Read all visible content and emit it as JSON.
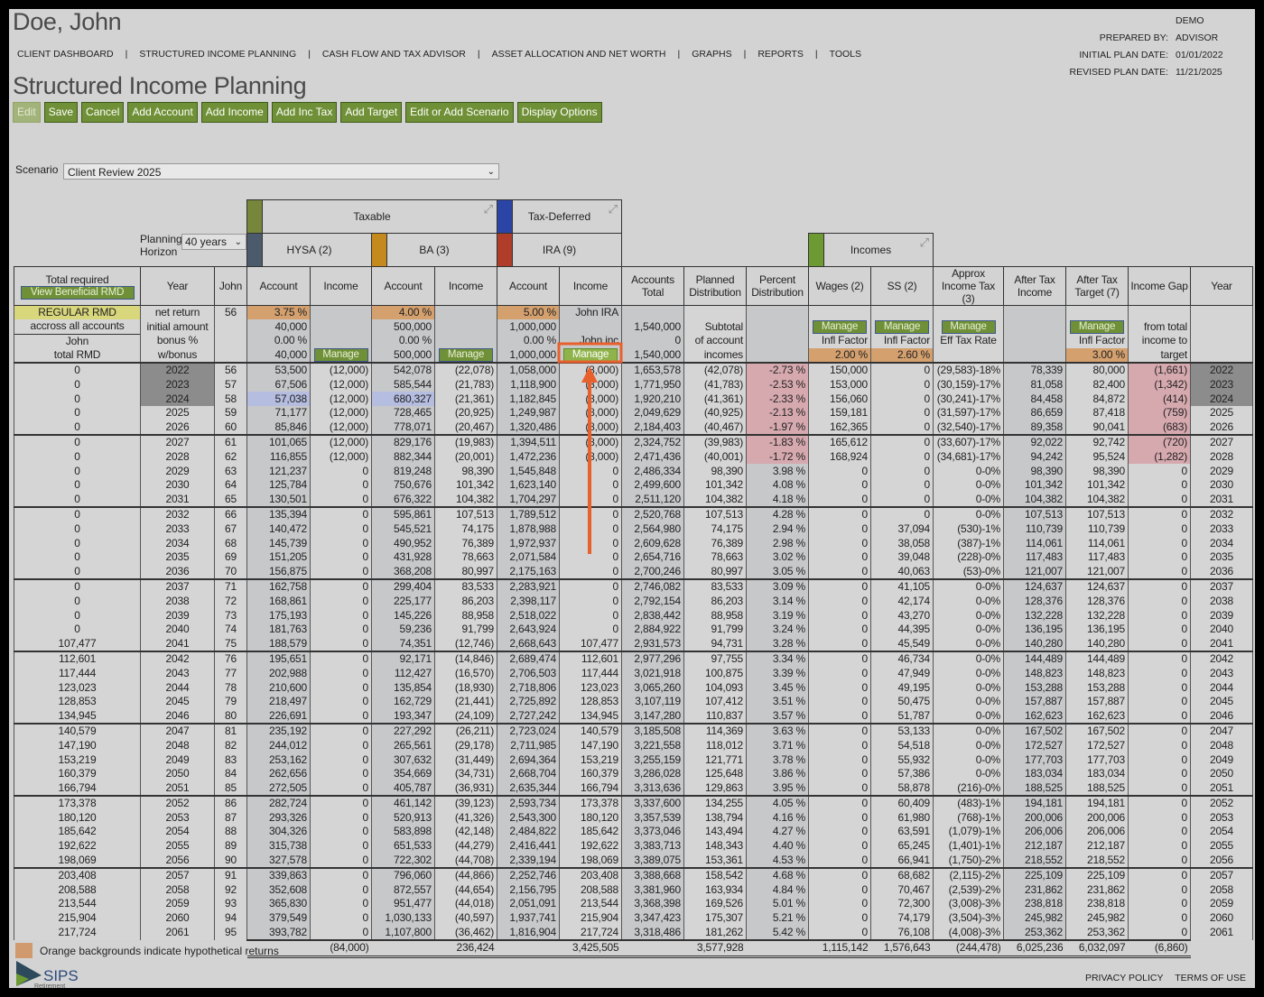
{
  "client_name": "Doe, John",
  "nav": [
    "CLIENT DASHBOARD",
    "STRUCTURED INCOME PLANNING",
    "CASH FLOW AND TAX ADVISOR",
    "ASSET ALLOCATION AND NET WORTH",
    "GRAPHS",
    "REPORTS",
    "TOOLS"
  ],
  "meta": {
    "prepared_by_label": "PREPARED BY:",
    "prepared_by": "DEMO ADVISOR",
    "initial_label": "INITIAL PLAN DATE:",
    "initial_date": "01/01/2022",
    "revised_label": "REVISED PLAN DATE:",
    "revised_date": "11/21/2025"
  },
  "page_title": "Structured Income Planning",
  "toolbar": [
    "Edit",
    "Save",
    "Cancel",
    "Add Account",
    "Add Income",
    "Add Inc Tax",
    "Add Target",
    "Edit or Add Scenario",
    "Display Options"
  ],
  "scenario": {
    "label": "Scenario",
    "value": "Client Review 2025"
  },
  "planning_horizon": {
    "label1": "Planning",
    "label2": "Horizon",
    "value": "40 years"
  },
  "groups": {
    "taxable": "Taxable",
    "tax_deferred": "Tax-Deferred",
    "hysa": "HYSA (2)",
    "ba": "BA (3)",
    "ira": "IRA (9)",
    "incomes": "Incomes"
  },
  "colors": {
    "taxable": "#76863a",
    "tax_deferred": "#2a45a5",
    "hysa": "#4b5b6b",
    "ba": "#c48a1e",
    "ira": "#b03c2a",
    "incomes": "#6d9a32",
    "button": "#6f9036",
    "hypothetical": "#d4a06e"
  },
  "headers": {
    "total_required": "Total required",
    "view_rmd": "View Beneficial RMD",
    "year": "Year",
    "john": "John",
    "account": "Account",
    "income": "Income",
    "accounts_total": "Accounts Total",
    "planned": "Planned Distribution",
    "percent": "Percent Distribution",
    "wages": "Wages (2)",
    "ss": "SS (2)",
    "tax": "Approx Income Tax (3)",
    "ati": "After Tax Income",
    "target": "After Tax Target (7)",
    "gap": "Income Gap",
    "year2": "Year"
  },
  "sub": {
    "regular_rmd": "REGULAR RMD",
    "across": "accross all accounts",
    "john": "John",
    "total_rmd": "total RMD",
    "net_return": "net return",
    "initial_amount": "initial amount",
    "bonus": "bonus %",
    "wbonus": "w/bonus",
    "age": "56",
    "manage": "Manage",
    "hysa": {
      "rate": "3.75 %",
      "initial": "40,000",
      "bonus": "0.00 %",
      "wbonus": "40,000"
    },
    "ba": {
      "rate": "4.00 %",
      "initial": "500,000",
      "bonus": "0.00 %",
      "wbonus": "500,000"
    },
    "ira": {
      "rate": "5.00 %",
      "initial": "1,000,000",
      "bonus": "0.00 %",
      "wbonus": "1,000,000",
      "inc1": "John IRA",
      "inc3": "John inc"
    },
    "total": {
      "r2": "1,540,000",
      "r3": "0",
      "r4": "1,540,000"
    },
    "planned": {
      "r2": "Subtotal",
      "r3": "of account",
      "r4": "incomes"
    },
    "infl": "Infl Factor",
    "eff": "Eff Tax Rate",
    "wages_infl": "2.00 %",
    "ss_infl": "2.60 %",
    "target_infl": "3.00 %",
    "gap": {
      "r2": "from total",
      "r3": "income to",
      "r4": "target"
    }
  },
  "rows": [
    [
      "0",
      "2022",
      "56",
      "53,500",
      "(12,000)",
      "542,078",
      "(22,078)",
      "1,058,000",
      "(8,000)",
      "1,653,578",
      "(42,078)",
      "-2.73 %",
      "150,000",
      "0",
      "(29,583)-18%",
      "78,339",
      "80,000",
      "(1,661)"
    ],
    [
      "0",
      "2023",
      "57",
      "67,506",
      "(12,000)",
      "585,544",
      "(21,783)",
      "1,118,900",
      "(8,000)",
      "1,771,950",
      "(41,783)",
      "-2.53 %",
      "153,000",
      "0",
      "(30,159)-17%",
      "81,058",
      "82,400",
      "(1,342)"
    ],
    [
      "0",
      "2024",
      "58",
      "57,038",
      "(12,000)",
      "680,327",
      "(21,361)",
      "1,182,845",
      "(8,000)",
      "1,920,210",
      "(41,361)",
      "-2.33 %",
      "156,060",
      "0",
      "(30,241)-17%",
      "84,458",
      "84,872",
      "(414)"
    ],
    [
      "0",
      "2025",
      "59",
      "71,177",
      "(12,000)",
      "728,465",
      "(20,925)",
      "1,249,987",
      "(8,000)",
      "2,049,629",
      "(40,925)",
      "-2.13 %",
      "159,181",
      "0",
      "(31,597)-17%",
      "86,659",
      "87,418",
      "(759)"
    ],
    [
      "0",
      "2026",
      "60",
      "85,846",
      "(12,000)",
      "778,071",
      "(20,467)",
      "1,320,486",
      "(8,000)",
      "2,184,403",
      "(40,467)",
      "-1.97 %",
      "162,365",
      "0",
      "(32,540)-17%",
      "89,358",
      "90,041",
      "(683)"
    ],
    [
      "0",
      "2027",
      "61",
      "101,065",
      "(12,000)",
      "829,176",
      "(19,983)",
      "1,394,511",
      "(8,000)",
      "2,324,752",
      "(39,983)",
      "-1.83 %",
      "165,612",
      "0",
      "(33,607)-17%",
      "92,022",
      "92,742",
      "(720)"
    ],
    [
      "0",
      "2028",
      "62",
      "116,855",
      "(12,000)",
      "882,344",
      "(20,001)",
      "1,472,236",
      "(8,000)",
      "2,471,436",
      "(40,001)",
      "-1.72 %",
      "168,924",
      "0",
      "(34,681)-17%",
      "94,242",
      "95,524",
      "(1,282)"
    ],
    [
      "0",
      "2029",
      "63",
      "121,237",
      "0",
      "819,248",
      "98,390",
      "1,545,848",
      "0",
      "2,486,334",
      "98,390",
      "3.98 %",
      "0",
      "0",
      "0-0%",
      "98,390",
      "98,390",
      "0"
    ],
    [
      "0",
      "2030",
      "64",
      "125,784",
      "0",
      "750,676",
      "101,342",
      "1,623,140",
      "0",
      "2,499,600",
      "101,342",
      "4.08 %",
      "0",
      "0",
      "0-0%",
      "101,342",
      "101,342",
      "0"
    ],
    [
      "0",
      "2031",
      "65",
      "130,501",
      "0",
      "676,322",
      "104,382",
      "1,704,297",
      "0",
      "2,511,120",
      "104,382",
      "4.18 %",
      "0",
      "0",
      "0-0%",
      "104,382",
      "104,382",
      "0"
    ],
    [
      "0",
      "2032",
      "66",
      "135,394",
      "0",
      "595,861",
      "107,513",
      "1,789,512",
      "0",
      "2,520,768",
      "107,513",
      "4.28 %",
      "0",
      "0",
      "0-0%",
      "107,513",
      "107,513",
      "0"
    ],
    [
      "0",
      "2033",
      "67",
      "140,472",
      "0",
      "545,521",
      "74,175",
      "1,878,988",
      "0",
      "2,564,980",
      "74,175",
      "2.94 %",
      "0",
      "37,094",
      "(530)-1%",
      "110,739",
      "110,739",
      "0"
    ],
    [
      "0",
      "2034",
      "68",
      "145,739",
      "0",
      "490,952",
      "76,389",
      "1,972,937",
      "0",
      "2,609,628",
      "76,389",
      "2.98 %",
      "0",
      "38,058",
      "(387)-1%",
      "114,061",
      "114,061",
      "0"
    ],
    [
      "0",
      "2035",
      "69",
      "151,205",
      "0",
      "431,928",
      "78,663",
      "2,071,584",
      "0",
      "2,654,716",
      "78,663",
      "3.02 %",
      "0",
      "39,048",
      "(228)-0%",
      "117,483",
      "117,483",
      "0"
    ],
    [
      "0",
      "2036",
      "70",
      "156,875",
      "0",
      "368,208",
      "80,997",
      "2,175,163",
      "0",
      "2,700,246",
      "80,997",
      "3.05 %",
      "0",
      "40,063",
      "(53)-0%",
      "121,007",
      "121,007",
      "0"
    ],
    [
      "0",
      "2037",
      "71",
      "162,758",
      "0",
      "299,404",
      "83,533",
      "2,283,921",
      "0",
      "2,746,082",
      "83,533",
      "3.09 %",
      "0",
      "41,105",
      "0-0%",
      "124,637",
      "124,637",
      "0"
    ],
    [
      "0",
      "2038",
      "72",
      "168,861",
      "0",
      "225,177",
      "86,203",
      "2,398,117",
      "0",
      "2,792,154",
      "86,203",
      "3.14 %",
      "0",
      "42,174",
      "0-0%",
      "128,376",
      "128,376",
      "0"
    ],
    [
      "0",
      "2039",
      "73",
      "175,193",
      "0",
      "145,226",
      "88,958",
      "2,518,022",
      "0",
      "2,838,442",
      "88,958",
      "3.19 %",
      "0",
      "43,270",
      "0-0%",
      "132,228",
      "132,228",
      "0"
    ],
    [
      "0",
      "2040",
      "74",
      "181,763",
      "0",
      "59,236",
      "91,799",
      "2,643,924",
      "0",
      "2,884,922",
      "91,799",
      "3.24 %",
      "0",
      "44,395",
      "0-0%",
      "136,195",
      "136,195",
      "0"
    ],
    [
      "107,477",
      "2041",
      "75",
      "188,579",
      "0",
      "74,351",
      "(12,746)",
      "2,668,643",
      "107,477",
      "2,931,573",
      "94,731",
      "3.28 %",
      "0",
      "45,549",
      "0-0%",
      "140,280",
      "140,280",
      "0"
    ],
    [
      "112,601",
      "2042",
      "76",
      "195,651",
      "0",
      "92,171",
      "(14,846)",
      "2,689,474",
      "112,601",
      "2,977,296",
      "97,755",
      "3.34 %",
      "0",
      "46,734",
      "0-0%",
      "144,489",
      "144,489",
      "0"
    ],
    [
      "117,444",
      "2043",
      "77",
      "202,988",
      "0",
      "112,427",
      "(16,570)",
      "2,706,503",
      "117,444",
      "3,021,918",
      "100,875",
      "3.39 %",
      "0",
      "47,949",
      "0-0%",
      "148,823",
      "148,823",
      "0"
    ],
    [
      "123,023",
      "2044",
      "78",
      "210,600",
      "0",
      "135,854",
      "(18,930)",
      "2,718,806",
      "123,023",
      "3,065,260",
      "104,093",
      "3.45 %",
      "0",
      "49,195",
      "0-0%",
      "153,288",
      "153,288",
      "0"
    ],
    [
      "128,853",
      "2045",
      "79",
      "218,497",
      "0",
      "162,729",
      "(21,441)",
      "2,725,892",
      "128,853",
      "3,107,119",
      "107,412",
      "3.51 %",
      "0",
      "50,475",
      "0-0%",
      "157,887",
      "157,887",
      "0"
    ],
    [
      "134,945",
      "2046",
      "80",
      "226,691",
      "0",
      "193,347",
      "(24,109)",
      "2,727,242",
      "134,945",
      "3,147,280",
      "110,837",
      "3.57 %",
      "0",
      "51,787",
      "0-0%",
      "162,623",
      "162,623",
      "0"
    ],
    [
      "140,579",
      "2047",
      "81",
      "235,192",
      "0",
      "227,292",
      "(26,211)",
      "2,723,024",
      "140,579",
      "3,185,508",
      "114,369",
      "3.63 %",
      "0",
      "53,133",
      "0-0%",
      "167,502",
      "167,502",
      "0"
    ],
    [
      "147,190",
      "2048",
      "82",
      "244,012",
      "0",
      "265,561",
      "(29,178)",
      "2,711,985",
      "147,190",
      "3,221,558",
      "118,012",
      "3.71 %",
      "0",
      "54,518",
      "0-0%",
      "172,527",
      "172,527",
      "0"
    ],
    [
      "153,219",
      "2049",
      "83",
      "253,162",
      "0",
      "307,632",
      "(31,449)",
      "2,694,364",
      "153,219",
      "3,255,159",
      "121,771",
      "3.78 %",
      "0",
      "55,932",
      "0-0%",
      "177,703",
      "177,703",
      "0"
    ],
    [
      "160,379",
      "2050",
      "84",
      "262,656",
      "0",
      "354,669",
      "(34,731)",
      "2,668,704",
      "160,379",
      "3,286,028",
      "125,648",
      "3.86 %",
      "0",
      "57,386",
      "0-0%",
      "183,034",
      "183,034",
      "0"
    ],
    [
      "166,794",
      "2051",
      "85",
      "272,505",
      "0",
      "405,787",
      "(36,931)",
      "2,635,344",
      "166,794",
      "3,313,636",
      "129,863",
      "3.95 %",
      "0",
      "58,878",
      "(216)-0%",
      "188,525",
      "188,525",
      "0"
    ],
    [
      "173,378",
      "2052",
      "86",
      "282,724",
      "0",
      "461,142",
      "(39,123)",
      "2,593,734",
      "173,378",
      "3,337,600",
      "134,255",
      "4.05 %",
      "0",
      "60,409",
      "(483)-1%",
      "194,181",
      "194,181",
      "0"
    ],
    [
      "180,120",
      "2053",
      "87",
      "293,326",
      "0",
      "520,913",
      "(41,326)",
      "2,543,300",
      "180,120",
      "3,357,539",
      "138,794",
      "4.16 %",
      "0",
      "61,980",
      "(768)-1%",
      "200,006",
      "200,006",
      "0"
    ],
    [
      "185,642",
      "2054",
      "88",
      "304,326",
      "0",
      "583,898",
      "(42,148)",
      "2,484,822",
      "185,642",
      "3,373,046",
      "143,494",
      "4.27 %",
      "0",
      "63,591",
      "(1,079)-1%",
      "206,006",
      "206,006",
      "0"
    ],
    [
      "192,622",
      "2055",
      "89",
      "315,738",
      "0",
      "651,533",
      "(44,279)",
      "2,416,441",
      "192,622",
      "3,383,713",
      "148,343",
      "4.40 %",
      "0",
      "65,245",
      "(1,401)-1%",
      "212,187",
      "212,187",
      "0"
    ],
    [
      "198,069",
      "2056",
      "90",
      "327,578",
      "0",
      "722,302",
      "(44,708)",
      "2,339,194",
      "198,069",
      "3,389,075",
      "153,361",
      "4.53 %",
      "0",
      "66,941",
      "(1,750)-2%",
      "218,552",
      "218,552",
      "0"
    ],
    [
      "203,408",
      "2057",
      "91",
      "339,863",
      "0",
      "796,060",
      "(44,866)",
      "2,252,746",
      "203,408",
      "3,388,668",
      "158,542",
      "4.68 %",
      "0",
      "68,682",
      "(2,115)-2%",
      "225,109",
      "225,109",
      "0"
    ],
    [
      "208,588",
      "2058",
      "92",
      "352,608",
      "0",
      "872,557",
      "(44,654)",
      "2,156,795",
      "208,588",
      "3,381,960",
      "163,934",
      "4.84 %",
      "0",
      "70,467",
      "(2,539)-2%",
      "231,862",
      "231,862",
      "0"
    ],
    [
      "213,544",
      "2059",
      "93",
      "365,830",
      "0",
      "951,477",
      "(44,018)",
      "2,051,091",
      "213,544",
      "3,368,398",
      "169,526",
      "5.01 %",
      "0",
      "72,300",
      "(3,008)-3%",
      "238,818",
      "238,818",
      "0"
    ],
    [
      "215,904",
      "2060",
      "94",
      "379,549",
      "0",
      "1,030,133",
      "(40,597)",
      "1,937,741",
      "215,904",
      "3,347,423",
      "175,307",
      "5.21 %",
      "0",
      "74,179",
      "(3,504)-3%",
      "245,982",
      "245,982",
      "0"
    ],
    [
      "217,724",
      "2061",
      "95",
      "393,782",
      "0",
      "1,107,800",
      "(36,462)",
      "1,816,904",
      "217,724",
      "3,318,486",
      "181,262",
      "5.42 %",
      "0",
      "76,108",
      "(4,008)-3%",
      "253,362",
      "253,362",
      "0"
    ]
  ],
  "past_years": [
    "2022",
    "2023",
    "2024"
  ],
  "totals": {
    "hysa_inc": "(84,000)",
    "ba_inc": "236,424",
    "ira_inc": "3,425,505",
    "planned": "3,577,928",
    "wages": "1,115,142",
    "ss": "1,576,643",
    "tax": "(244,478)",
    "ati": "6,025,236",
    "target": "6,032,097",
    "gap": "(6,860)"
  },
  "legend": "Orange backgrounds indicate hypothetical returns",
  "logo": {
    "text": "SIPS",
    "sub": "Retirement"
  },
  "footer": {
    "privacy": "PRIVACY POLICY",
    "terms": "TERMS OF USE"
  }
}
